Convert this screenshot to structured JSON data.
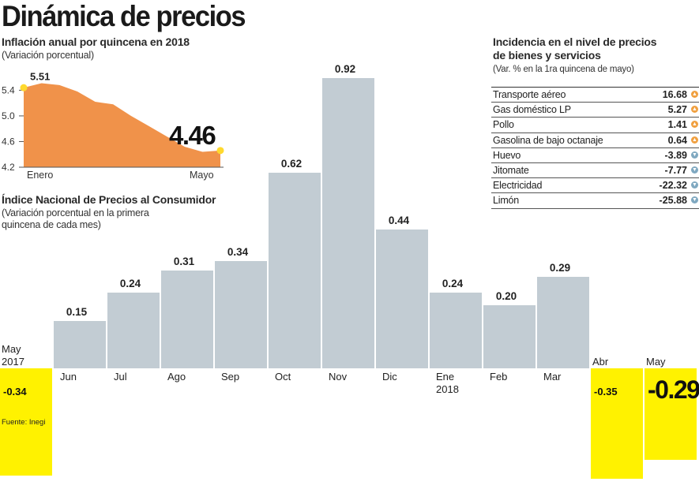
{
  "title": "Dinámica de precios",
  "colors": {
    "bar": "#c2ccd3",
    "negative": "#fff200",
    "inset_fill": "#f0924a",
    "inset_marker": "#ffd92e"
  },
  "inset": {
    "title": "Inflación anual por quincena en 2018",
    "subtitle": "(Variación porcentual)",
    "start_label": "5.51",
    "end_label": "4.46"
  },
  "main_chart": {
    "title": "Índice Nacional de Precios al Consumidor",
    "subtitle_lines": [
      "(Variación porcentual en la primera",
      "quincena de cada mes)"
    ]
  },
  "incidence": {
    "title_lines": [
      "Incidencia en el nivel de precios",
      "de bienes y servicios"
    ],
    "subtitle": "(Var. % en la 1ra quincena de mayo)",
    "items": [
      {
        "name": "Transporte aéreo",
        "value": "16.68",
        "direction": "up"
      },
      {
        "name": "Gas doméstico LP",
        "value": "5.27",
        "direction": "up"
      },
      {
        "name": "Pollo",
        "value": "1.41",
        "direction": "up"
      },
      {
        "name": "Gasolina de bajo octanaje",
        "value": "0.64",
        "direction": "up"
      },
      {
        "name": "Huevo",
        "value": "-3.89",
        "direction": "down"
      },
      {
        "name": "Jitomate",
        "value": "-7.77",
        "direction": "down"
      },
      {
        "name": "Electricidad",
        "value": "-22.32",
        "direction": "down"
      },
      {
        "name": "Limón",
        "value": "-25.88",
        "direction": "down"
      }
    ]
  },
  "source": "Fuente: Inegi",
  "chart_data": [
    {
      "type": "area",
      "title": "Inflación anual por quincena en 2018",
      "subtitle": "(Variación porcentual)",
      "x_labels": [
        "Enero",
        "Mayo"
      ],
      "yticks": [
        4.2,
        4.6,
        5.0,
        5.4
      ],
      "ylim": [
        4.2,
        5.7
      ],
      "values": [
        5.44,
        5.51,
        5.48,
        5.38,
        5.22,
        5.18,
        5.0,
        4.84,
        4.68,
        4.52,
        4.44,
        4.46
      ],
      "labeled_points": [
        {
          "label": "5.51",
          "value": 5.51
        },
        {
          "label": "4.46",
          "value": 4.46
        }
      ]
    },
    {
      "type": "bar",
      "title": "Índice Nacional de Precios al Consumidor",
      "subtitle": "(Variación porcentual en la primera quincena de cada mes)",
      "categories": [
        "May 2017",
        "Jun",
        "Jul",
        "Ago",
        "Sep",
        "Oct",
        "Nov",
        "Dic",
        "Ene 2018",
        "Feb",
        "Mar",
        "Abr",
        "May"
      ],
      "category_lines": [
        [
          "May",
          "2017"
        ],
        [
          "Jun"
        ],
        [
          "Jul"
        ],
        [
          "Ago"
        ],
        [
          "Sep"
        ],
        [
          "Oct"
        ],
        [
          "Nov"
        ],
        [
          "Dic"
        ],
        [
          "Ene",
          "2018"
        ],
        [
          "Feb"
        ],
        [
          "Mar"
        ],
        [
          "Abr"
        ],
        [
          "May"
        ]
      ],
      "values": [
        -0.34,
        0.15,
        0.24,
        0.31,
        0.34,
        0.62,
        0.92,
        0.44,
        0.24,
        0.2,
        0.29,
        -0.35,
        -0.29
      ],
      "value_labels": [
        "-0.34",
        "0.15",
        "0.24",
        "0.31",
        "0.34",
        "0.62",
        "0.92",
        "0.44",
        "0.24",
        "0.20",
        "0.29",
        "-0.35",
        "-0.29"
      ],
      "ylim": [
        -0.35,
        0.92
      ],
      "grid": false
    }
  ]
}
